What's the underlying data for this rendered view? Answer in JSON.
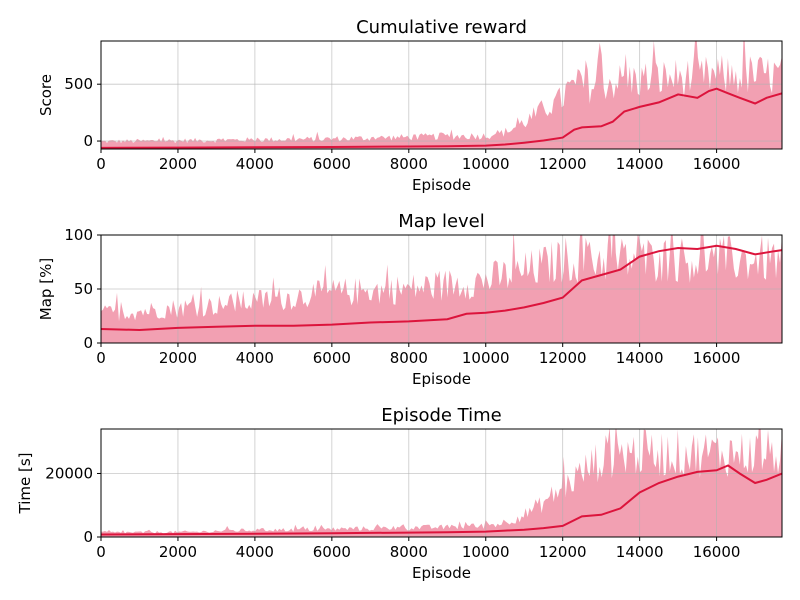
{
  "colors": {
    "raw": "#f2a0b2",
    "smooth": "#dc143c",
    "grid": "#b0b0b0"
  },
  "chart_data": [
    {
      "type": "area",
      "title": "Cumulative reward",
      "xlabel": "Episode",
      "ylabel": "Score",
      "xlim": [
        0,
        17700
      ],
      "ylim": [
        -70,
        880
      ],
      "xticks": [
        0,
        2000,
        4000,
        6000,
        8000,
        10000,
        12000,
        14000,
        16000
      ],
      "yticks": [
        0,
        500
      ],
      "grid": true,
      "series": [
        {
          "role": "raw-upper",
          "x": [
            0,
            1000,
            2000,
            2900,
            3000,
            4000,
            5000,
            6000,
            7000,
            8000,
            9000,
            10000,
            10500,
            11000,
            11500,
            12000,
            12100,
            13000,
            14000,
            15000,
            16000,
            17000,
            17700
          ],
          "values": [
            15,
            20,
            25,
            30,
            30,
            35,
            40,
            45,
            55,
            65,
            75,
            80,
            120,
            230,
            380,
            500,
            600,
            680,
            720,
            740,
            760,
            770,
            770
          ]
        },
        {
          "role": "raw-lower",
          "x": [
            0,
            10000,
            12000,
            14000,
            16000,
            17700
          ],
          "values": [
            -70,
            -70,
            -70,
            -70,
            -70,
            -70
          ]
        },
        {
          "role": "smoothed",
          "x": [
            0,
            2000,
            4000,
            6000,
            8000,
            9000,
            10000,
            10500,
            11000,
            11500,
            12000,
            12300,
            12500,
            13000,
            13300,
            13600,
            14000,
            14500,
            15000,
            15500,
            15800,
            16000,
            16300,
            16600,
            17000,
            17300,
            17700
          ],
          "values": [
            -60,
            -58,
            -55,
            -52,
            -48,
            -45,
            -40,
            -30,
            -15,
            5,
            30,
            100,
            120,
            130,
            170,
            260,
            300,
            340,
            410,
            380,
            440,
            460,
            420,
            380,
            330,
            380,
            420
          ]
        }
      ]
    },
    {
      "type": "area",
      "title": "Map level",
      "xlabel": "Episode",
      "ylabel": "Map [%]",
      "xlim": [
        0,
        17700
      ],
      "ylim": [
        0,
        100
      ],
      "xticks": [
        0,
        2000,
        4000,
        6000,
        8000,
        10000,
        12000,
        14000,
        16000
      ],
      "yticks": [
        0,
        50,
        100
      ],
      "grid": true,
      "series": [
        {
          "role": "raw-upper",
          "x": [
            0,
            1000,
            2000,
            3000,
            4000,
            5000,
            6000,
            7000,
            8000,
            9000,
            10000,
            11000,
            11500,
            12000,
            13000,
            14000,
            15000,
            16000,
            17000,
            17700
          ],
          "values": [
            35,
            38,
            42,
            45,
            50,
            55,
            60,
            62,
            65,
            70,
            75,
            85,
            92,
            100,
            100,
            100,
            100,
            100,
            100,
            100
          ]
        },
        {
          "role": "raw-lower",
          "x": [
            0,
            12000,
            17700
          ],
          "values": [
            0,
            0,
            0
          ]
        },
        {
          "role": "smoothed",
          "x": [
            0,
            1000,
            2000,
            3000,
            4000,
            5000,
            6000,
            7000,
            8000,
            9000,
            9500,
            10000,
            10500,
            11000,
            11500,
            12000,
            12500,
            13000,
            13500,
            14000,
            14500,
            15000,
            15500,
            16000,
            16500,
            17000,
            17500,
            17700
          ],
          "values": [
            13,
            12,
            14,
            15,
            16,
            16,
            17,
            19,
            20,
            22,
            27,
            28,
            30,
            33,
            37,
            42,
            58,
            63,
            68,
            80,
            85,
            88,
            87,
            90,
            87,
            82,
            85,
            86
          ]
        }
      ]
    },
    {
      "type": "area",
      "title": "Episode Time",
      "xlabel": "Episode",
      "ylabel": "Time [s]",
      "xlim": [
        0,
        17700
      ],
      "ylim": [
        0,
        34000
      ],
      "xticks": [
        0,
        2000,
        4000,
        6000,
        8000,
        10000,
        12000,
        14000,
        16000
      ],
      "yticks": [
        0,
        20000
      ],
      "grid": true,
      "series": [
        {
          "role": "raw-upper",
          "x": [
            0,
            2000,
            2900,
            3000,
            4000,
            6000,
            8000,
            9000,
            10000,
            10500,
            11000,
            11500,
            12000,
            12500,
            13000,
            13500,
            14000,
            15000,
            16000,
            17000,
            17700
          ],
          "values": [
            1800,
            2000,
            2200,
            2500,
            2800,
            3200,
            3800,
            4000,
            4500,
            6000,
            9000,
            14000,
            20000,
            26000,
            32000,
            34000,
            34000,
            34000,
            34000,
            34000,
            34000
          ]
        },
        {
          "role": "raw-lower",
          "x": [
            0,
            12000,
            17700
          ],
          "values": [
            0,
            0,
            0
          ]
        },
        {
          "role": "smoothed",
          "x": [
            0,
            2000,
            4000,
            6000,
            8000,
            9000,
            10000,
            10500,
            11000,
            11500,
            12000,
            12500,
            13000,
            13500,
            14000,
            14500,
            15000,
            15500,
            16000,
            16300,
            16600,
            17000,
            17300,
            17700
          ],
          "values": [
            800,
            900,
            1000,
            1200,
            1400,
            1500,
            1700,
            2000,
            2300,
            2800,
            3500,
            6500,
            7000,
            9000,
            14000,
            17000,
            19000,
            20500,
            21000,
            22500,
            20000,
            17000,
            18000,
            20000
          ]
        }
      ]
    }
  ]
}
